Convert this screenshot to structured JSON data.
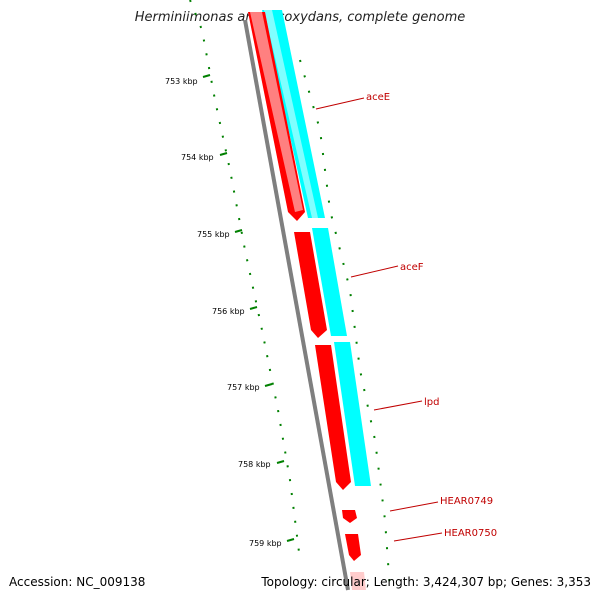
{
  "title": "Herminiimonas arsenicoxydans, complete genome",
  "footer": {
    "accession": "Accession: NC_009138",
    "summary": "Topology: circular; Length: 3,424,307 bp; Genes: 3,353"
  },
  "ticks": [
    "753 kbp",
    "754 kbp",
    "755 kbp",
    "756 kbp",
    "757 kbp",
    "758 kbp",
    "759 kbp"
  ],
  "genes": [
    {
      "id": "gene-acee",
      "name": "aceE"
    },
    {
      "id": "gene-acef",
      "name": "aceF"
    },
    {
      "id": "gene-lpd",
      "name": "lpd"
    },
    {
      "id": "gene-hear0749",
      "name": "HEAR0749"
    },
    {
      "id": "gene-hear0750",
      "name": "HEAR0750"
    }
  ],
  "colors": {
    "cds": "#ff0000",
    "cds_highlight": "#ff8080",
    "feature": "#00ffff",
    "backbone": "#7f7f7f",
    "gc_dots": "#008000",
    "label": "#c00000"
  }
}
